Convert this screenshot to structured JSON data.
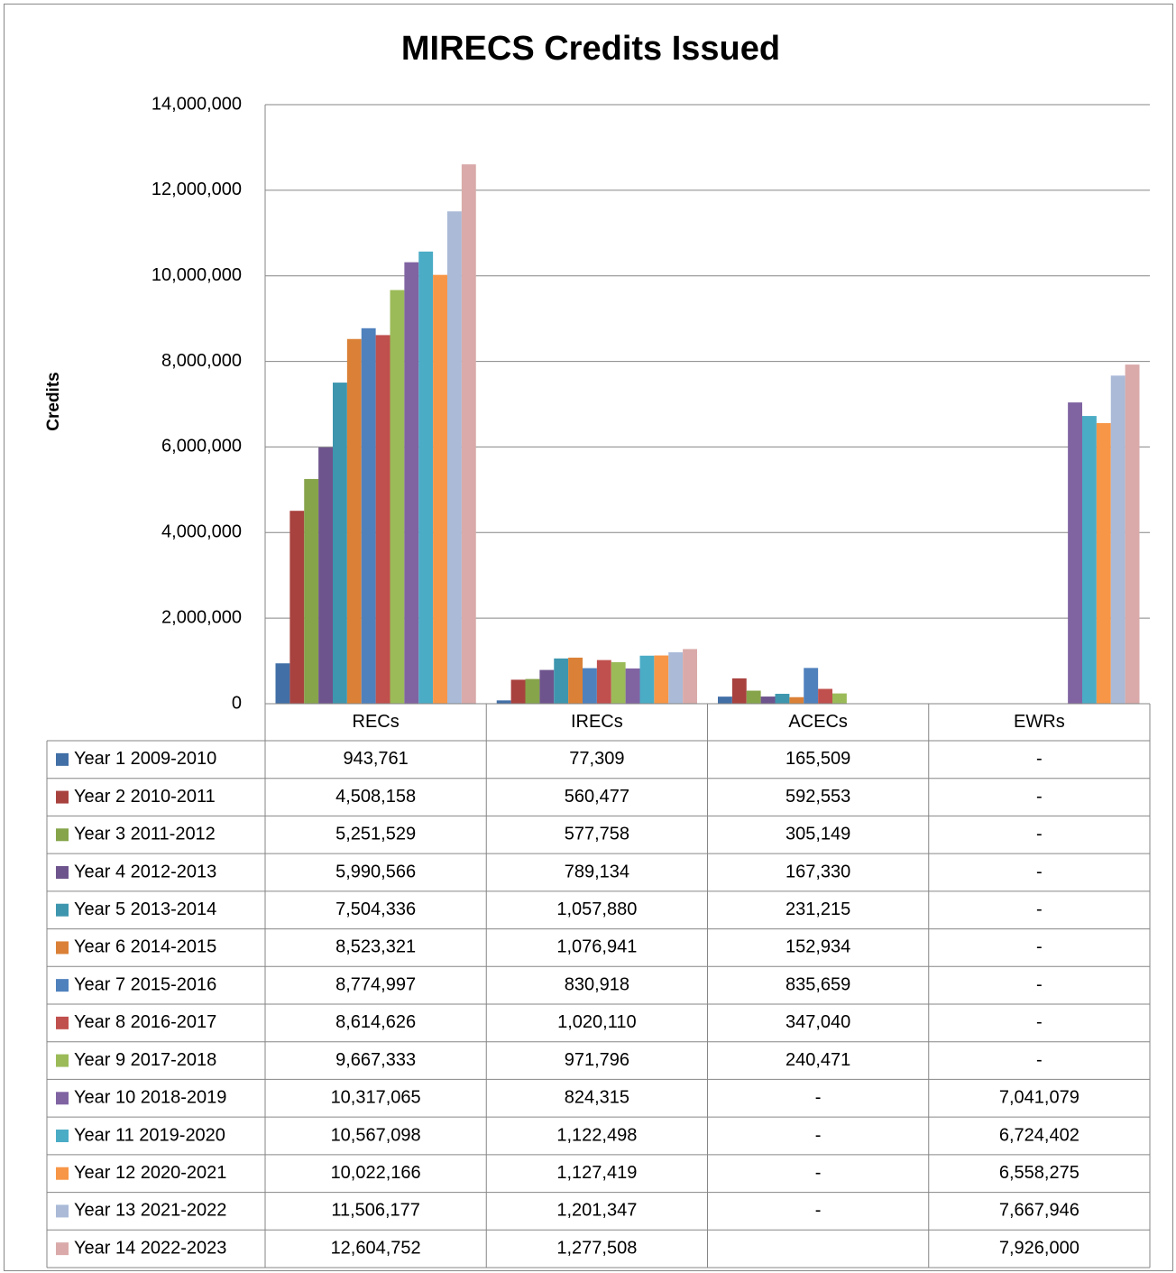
{
  "chart_data": {
    "type": "bar",
    "title": "MIRECS Credits Issued",
    "y_label": "Credits",
    "categories": [
      "RECs",
      "IRECs",
      "ACECs",
      "EWRs"
    ],
    "ylim": [
      0,
      14000000
    ],
    "yticks": [
      0,
      {
        "value": 2000000,
        "label": "2,000,000"
      },
      {
        "value": 4000000,
        "label": "4,000,000"
      },
      {
        "value": 6000000,
        "label": "6,000,000"
      },
      {
        "value": 8000000,
        "label": "8,000,000"
      },
      {
        "value": 10000000,
        "label": "10,000,000"
      },
      {
        "value": 12000000,
        "label": "12,000,000"
      },
      {
        "value": 14000000,
        "label": "14,000,000"
      }
    ],
    "grid": true,
    "series": [
      {
        "name": "Year 1 2009-2010",
        "color": "#416fa6",
        "values": [
          943761,
          77309,
          165509,
          null
        ],
        "value_labels": [
          "943,761",
          "77,309",
          "165,509",
          "-"
        ]
      },
      {
        "name": "Year 2 2010-2011",
        "color": "#a8423f",
        "values": [
          4508158,
          560477,
          592553,
          null
        ],
        "value_labels": [
          "4,508,158",
          "560,477",
          "592,553",
          "-"
        ]
      },
      {
        "name": "Year 3 2011-2012",
        "color": "#86a44a",
        "values": [
          5251529,
          577758,
          305149,
          null
        ],
        "value_labels": [
          "5,251,529",
          "577,758",
          "305,149",
          "-"
        ]
      },
      {
        "name": "Year 4 2012-2013",
        "color": "#6e548d",
        "values": [
          5990566,
          789134,
          167330,
          null
        ],
        "value_labels": [
          "5,990,566",
          "789,134",
          "167,330",
          "-"
        ]
      },
      {
        "name": "Year 5 2013-2014",
        "color": "#3d96ae",
        "values": [
          7504336,
          1057880,
          231215,
          null
        ],
        "value_labels": [
          "7,504,336",
          "1,057,880",
          "231,215",
          "-"
        ]
      },
      {
        "name": "Year 6 2014-2015",
        "color": "#da8137",
        "values": [
          8523321,
          1076941,
          152934,
          null
        ],
        "value_labels": [
          "8,523,321",
          "1,076,941",
          "152,934",
          "-"
        ]
      },
      {
        "name": "Year 7 2015-2016",
        "color": "#4f81bd",
        "values": [
          8774997,
          830918,
          835659,
          null
        ],
        "value_labels": [
          "8,774,997",
          "830,918",
          "835,659",
          "-"
        ]
      },
      {
        "name": "Year 8 2016-2017",
        "color": "#c0504d",
        "values": [
          8614626,
          1020110,
          347040,
          null
        ],
        "value_labels": [
          "8,614,626",
          "1,020,110",
          "347,040",
          "-"
        ]
      },
      {
        "name": "Year 9 2017-2018",
        "color": "#9bbb59",
        "values": [
          9667333,
          971796,
          240471,
          null
        ],
        "value_labels": [
          "9,667,333",
          "971,796",
          "240,471",
          "-"
        ]
      },
      {
        "name": "Year 10 2018-2019",
        "color": "#8064a2",
        "values": [
          10317065,
          824315,
          null,
          7041079
        ],
        "value_labels": [
          "10,317,065",
          "824,315",
          "-",
          "7,041,079"
        ]
      },
      {
        "name": "Year 11 2019-2020",
        "color": "#4bacc6",
        "values": [
          10567098,
          1122498,
          null,
          6724402
        ],
        "value_labels": [
          "10,567,098",
          "1,122,498",
          "-",
          "6,724,402"
        ]
      },
      {
        "name": "Year 12 2020-2021",
        "color": "#f79646",
        "values": [
          10022166,
          1127419,
          null,
          6558275
        ],
        "value_labels": [
          "10,022,166",
          "1,127,419",
          "-",
          "6,558,275"
        ]
      },
      {
        "name": "Year 13 2021-2022",
        "color": "#aabad7",
        "values": [
          11506177,
          1201347,
          null,
          7667946
        ],
        "value_labels": [
          "11,506,177",
          "1,201,347",
          "-",
          "7,667,946"
        ]
      },
      {
        "name": "Year 14 2022-2023",
        "color": "#d9aaa9",
        "values": [
          12604752,
          1277508,
          null,
          7926000
        ],
        "value_labels": [
          "12,604,752",
          "1,277,508",
          null,
          "7,926,000"
        ]
      }
    ]
  }
}
